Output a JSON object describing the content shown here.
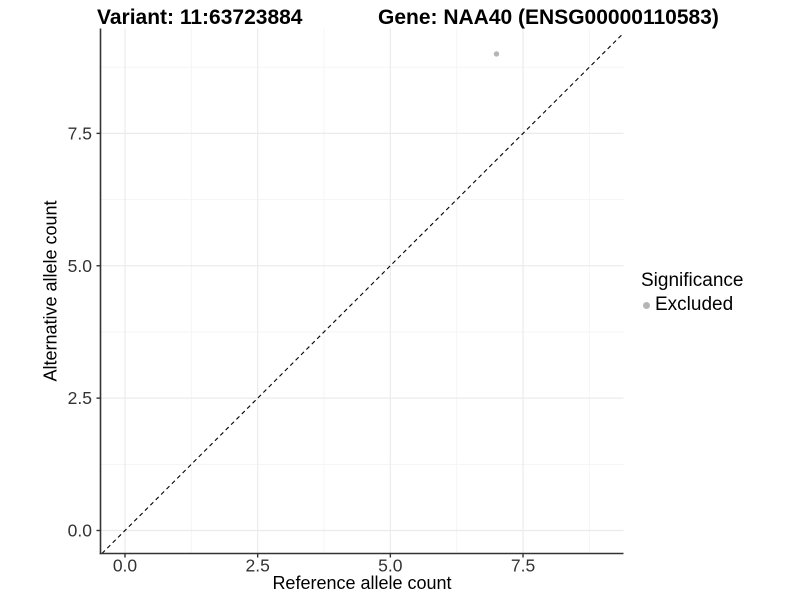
{
  "chart_data": {
    "type": "scatter",
    "title_left": "Variant: 11:63723884",
    "title_right": "Gene: NAA40 (ENSG00000110583)",
    "xlabel": "Reference allele count",
    "ylabel": "Alternative allele count",
    "x_ticks": {
      "values": [
        0,
        2.5,
        5,
        7.5
      ],
      "labels": [
        "0.0",
        "2.5",
        "5.0",
        "7.5"
      ]
    },
    "y_ticks": {
      "values": [
        0,
        2.5,
        5,
        7.5
      ],
      "labels": [
        "0.0",
        "2.5",
        "5.0",
        "7.5"
      ]
    },
    "x_minor": [
      1.25,
      3.75,
      6.25,
      8.75
    ],
    "y_minor": [
      1.25,
      3.75,
      6.25,
      8.75
    ],
    "xlim": [
      -0.46,
      9.4
    ],
    "ylim": [
      -0.44,
      9.48
    ],
    "grid": "on",
    "reference_line": {
      "type": "identity",
      "slope": 1,
      "intercept": 0,
      "style": "dashed",
      "color": "#000000"
    },
    "series": [
      {
        "name": "Excluded",
        "color": "#b5b5b5",
        "points": [
          {
            "x": 7,
            "y": 9
          }
        ]
      }
    ],
    "legend": {
      "title": "Significance",
      "position": "right",
      "items": [
        {
          "label": "Excluded",
          "color": "#b5b5b5"
        }
      ]
    }
  },
  "colors": {
    "background": "#ffffff",
    "axis_line": "#333333",
    "tick_label": "#333333",
    "grid_major": "#ebebeb",
    "grid_minor": "#f5f5f5",
    "point": "#b5b5b5",
    "dashed_line": "#000000"
  }
}
